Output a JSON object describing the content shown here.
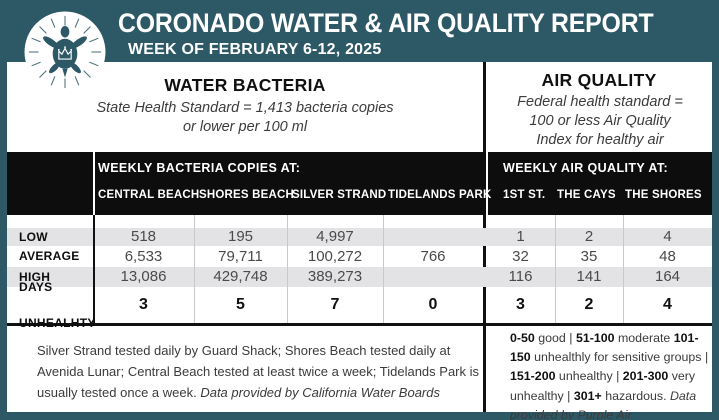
{
  "header": {
    "title": "CORONADO WATER & AIR QUALITY REPORT",
    "subtitle": "WEEK OF FEBRUARY 6-12, 2025"
  },
  "water": {
    "heading": "WATER BACTERIA",
    "standard_lines": [
      "State Health Standard  = 1,413 bacteria copies",
      "or lower per 100 ml"
    ],
    "band_title": "WEEKLY BACTERIA COPIES AT:",
    "columns": [
      "CENTRAL BEACH",
      "SHORES BEACH",
      "SILVER STRAND",
      "TIDELANDS PARK"
    ],
    "footnote_segments": [
      {
        "t": "Silver Strand tested daily by Guard Shack; Shores Beach tested daily at Avenida Lunar; Central Beach tested at least twice a week; Tidelands Park is usually tested once a week. "
      },
      {
        "t": "Data provided by California Water Boards",
        "i": true
      }
    ]
  },
  "air": {
    "heading": "AIR QUALITY",
    "standard_lines": [
      "Federal health standard =",
      "100 or less Air Quality",
      "Index for healthy air"
    ],
    "band_title": "WEEKLY AIR QUALITY AT:",
    "columns": [
      "1ST ST.",
      "THE CAYS",
      "THE SHORES"
    ],
    "scale_segments": [
      {
        "t": "0-50",
        "b": true
      },
      {
        "t": " good | "
      },
      {
        "t": "51-100",
        "b": true
      },
      {
        "t": " moderate "
      },
      {
        "t": "101-150",
        "b": true
      },
      {
        "t": " unhealthly for sensitive groups | "
      },
      {
        "t": "151-200",
        "b": true
      },
      {
        "t": " unhealthy | "
      },
      {
        "t": "201-300",
        "b": true
      },
      {
        "t": " very unhealthy | "
      },
      {
        "t": "301+",
        "b": true
      },
      {
        "t": " hazardous. "
      },
      {
        "t": "Data provided by Purple Air",
        "i": true
      }
    ]
  },
  "rows": [
    {
      "label": "LOW",
      "water": [
        "518",
        "195",
        "4,997",
        ""
      ],
      "air": [
        "1",
        "2",
        "4"
      ]
    },
    {
      "label": "AVERAGE",
      "water": [
        "6,533",
        "79,711",
        "100,272",
        "766"
      ],
      "air": [
        "32",
        "35",
        "48"
      ]
    },
    {
      "label": "HIGH",
      "water": [
        "13,086",
        "429,748",
        "389,273",
        ""
      ],
      "air": [
        "116",
        "141",
        "164"
      ]
    },
    {
      "label": "DAYS UNHEALHTY",
      "water": [
        "3",
        "5",
        "7",
        "0"
      ],
      "air": [
        "3",
        "2",
        "4"
      ]
    }
  ],
  "logo": {
    "name": "coronado-sea-turtle-crown-emblem"
  },
  "colors": {
    "teal": "#2d5966",
    "band_black": "#0d0d0d",
    "row_stripe": "#e3e3e5",
    "number_gray": "#4a4a4a",
    "white": "#ffffff"
  }
}
